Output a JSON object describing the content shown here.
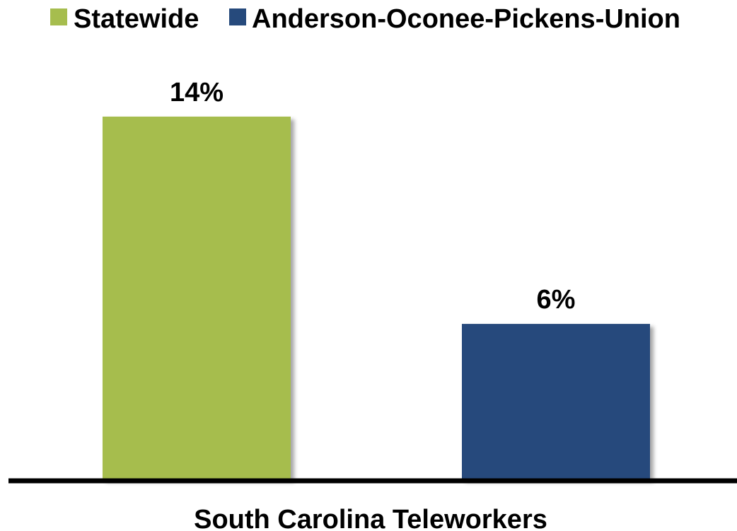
{
  "chart_data": {
    "type": "bar",
    "categories": [
      "South Carolina Teleworkers"
    ],
    "series": [
      {
        "name": "Statewide",
        "values": [
          14
        ],
        "label": "14%",
        "color": "#a6bd4e"
      },
      {
        "name": "Anderson-Oconee-Pickens-Union",
        "values": [
          6
        ],
        "label": "6%",
        "color": "#264a7c"
      }
    ],
    "title": "",
    "xlabel": "South Carolina Teleworkers",
    "ylabel": "",
    "ylim": [
      0,
      18.5
    ],
    "grid": false,
    "legend_position": "top",
    "axis_color": "#000000",
    "show_y_axis": false
  }
}
